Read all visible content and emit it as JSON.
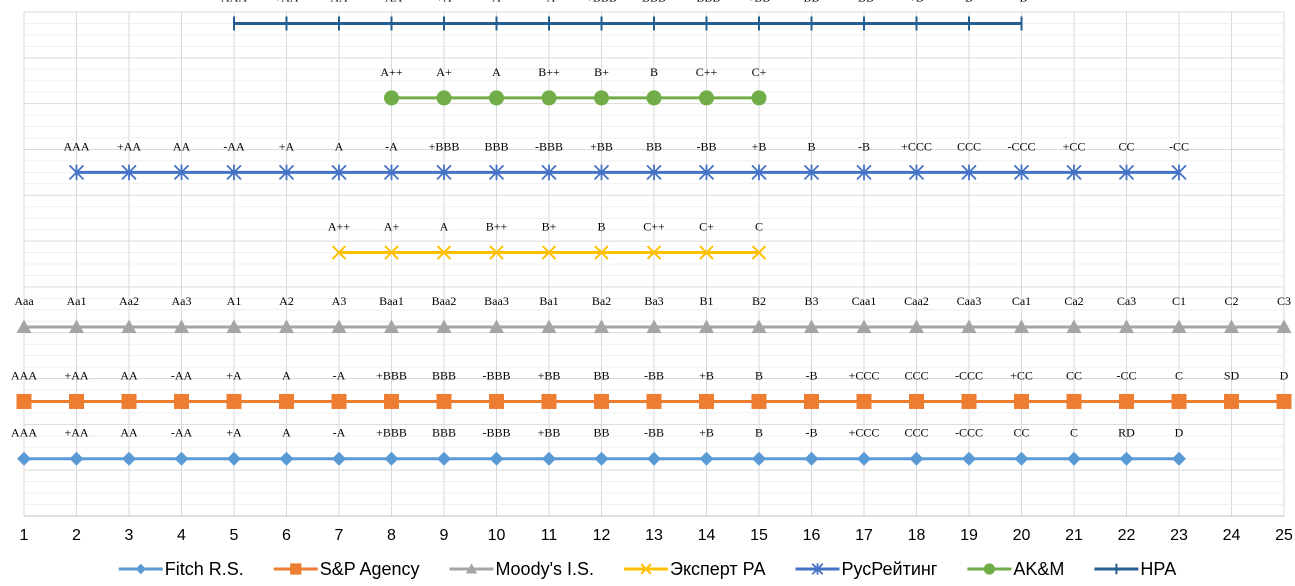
{
  "chart_data": {
    "type": "line",
    "title": "",
    "xlabel": "",
    "ylabel": "",
    "x_ticks": [
      1,
      2,
      3,
      4,
      5,
      6,
      7,
      8,
      9,
      10,
      11,
      12,
      13,
      14,
      15,
      16,
      17,
      18,
      19,
      20,
      21,
      22,
      23,
      24,
      25
    ],
    "xlim": [
      1,
      25
    ],
    "ylim": [
      0,
      8.8
    ],
    "grid": true,
    "legend_position": "bottom",
    "series": [
      {
        "name": "Fitch R.S.",
        "color": "#5b9bd5",
        "marker": "diamond",
        "level": 1,
        "x_start": 1,
        "labels": [
          "AAA",
          "+AA",
          "AA",
          "-AA",
          "+A",
          "A",
          "-A",
          "+BBB",
          "BBB",
          "-BBB",
          "+BB",
          "BB",
          "-BB",
          "+B",
          "B",
          "-B",
          "+CCC",
          "CCC",
          "-CCC",
          "CC",
          "C",
          "RD",
          "D"
        ]
      },
      {
        "name": "S&P Agency",
        "color": "#ed7d31",
        "marker": "square",
        "level": 2,
        "x_start": 1,
        "labels": [
          "AAA",
          "+AA",
          "AA",
          "-AA",
          "+A",
          "A",
          "-A",
          "+BBB",
          "BBB",
          "-BBB",
          "+BB",
          "BB",
          "-BB",
          "+B",
          "B",
          "-B",
          "+CCC",
          "CCC",
          "-CCC",
          "+CC",
          "CC",
          "-CC",
          "C",
          "SD",
          "D"
        ]
      },
      {
        "name": "Moody's I.S.",
        "color": "#a5a5a5",
        "marker": "triangle",
        "level": 3.3,
        "x_start": 1,
        "labels": [
          "Aaa",
          "Aa1",
          "Aa2",
          "Aa3",
          "A1",
          "A2",
          "A3",
          "Baa1",
          "Baa2",
          "Baa3",
          "Ba1",
          "Ba2",
          "Ba3",
          "B1",
          "B2",
          "B3",
          "Caa1",
          "Caa2",
          "Caa3",
          "Ca1",
          "Ca2",
          "Ca3",
          "C1",
          "C2",
          "C3"
        ]
      },
      {
        "name": "Эксперт РА",
        "color": "#ffc000",
        "marker": "x",
        "level": 4.6,
        "x_start": 7,
        "labels": [
          "A++",
          "A+",
          "A",
          "B++",
          "B+",
          "B",
          "C++",
          "C+",
          "C"
        ]
      },
      {
        "name": "РусРейтинг",
        "color": "#4472c4",
        "marker": "star",
        "level": 6,
        "x_start": 2,
        "labels": [
          "AAA",
          "+AA",
          "AA",
          "-AA",
          "+A",
          "A",
          "-A",
          "+BBB",
          "BBB",
          "-BBB",
          "+BB",
          "BB",
          "-BB",
          "+B",
          "B",
          "-B",
          "+CCC",
          "CCC",
          "-CCC",
          "+CC",
          "CC",
          "-CC"
        ]
      },
      {
        "name": "AK&M",
        "color": "#70ad47",
        "marker": "circle",
        "level": 7.3,
        "x_start": 8,
        "labels": [
          "A++",
          "A+",
          "A",
          "B++",
          "B+",
          "B",
          "C++",
          "C+"
        ]
      },
      {
        "name": "НРА",
        "color": "#255e91",
        "marker": "plus",
        "level": 8.6,
        "x_start": 5,
        "labels": [
          "AAA",
          "+AA",
          "AA",
          "-AA",
          "+A",
          "A",
          "-A",
          "+BBB",
          "BBB",
          "-BBB",
          "+BB",
          "BB",
          "-BB",
          "+B",
          "B",
          "-B"
        ]
      }
    ]
  }
}
